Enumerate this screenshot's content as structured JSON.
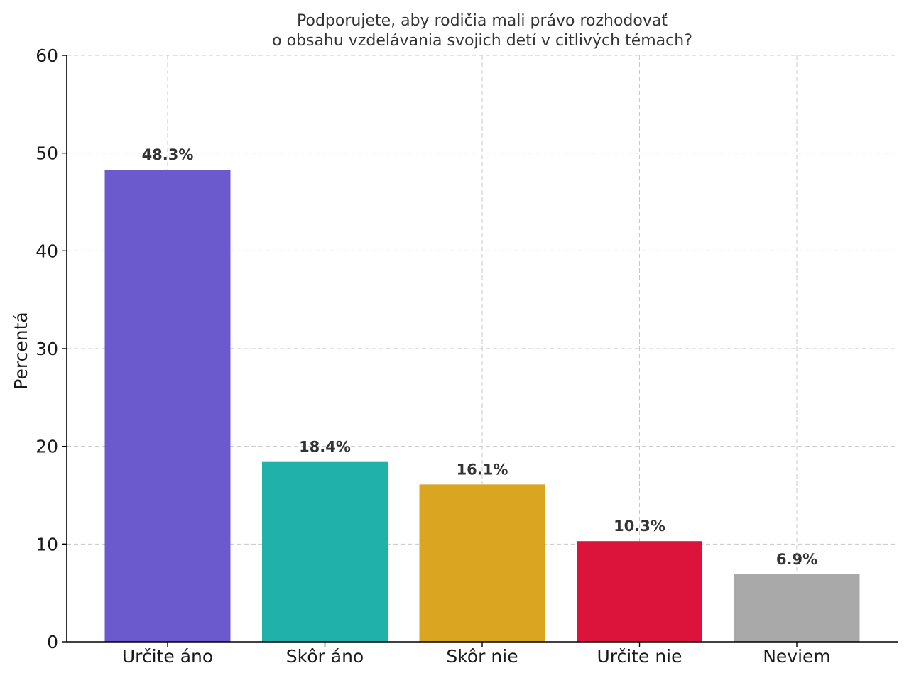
{
  "chart_data": {
    "type": "bar",
    "title": [
      "Podporujete, aby rodičia mali právo rozhodovať",
      "o obsahu vzdelávania svojich detí v citlivých témach?"
    ],
    "xlabel": "",
    "ylabel": "Percentá",
    "categories": [
      "Určite áno",
      "Skôr áno",
      "Skôr nie",
      "Určite nie",
      "Neviem"
    ],
    "values": [
      48.3,
      18.4,
      16.1,
      10.3,
      6.9
    ],
    "value_labels": [
      "48.3%",
      "18.4%",
      "16.1%",
      "10.3%",
      "6.9%"
    ],
    "colors": [
      "#6a5acd",
      "#20b2aa",
      "#daa520",
      "#dc143c",
      "#a9a9a9"
    ],
    "ylim": [
      0,
      60
    ],
    "yticks": [
      0,
      10,
      20,
      30,
      40,
      50,
      60
    ],
    "grid": true,
    "legend": "none"
  }
}
